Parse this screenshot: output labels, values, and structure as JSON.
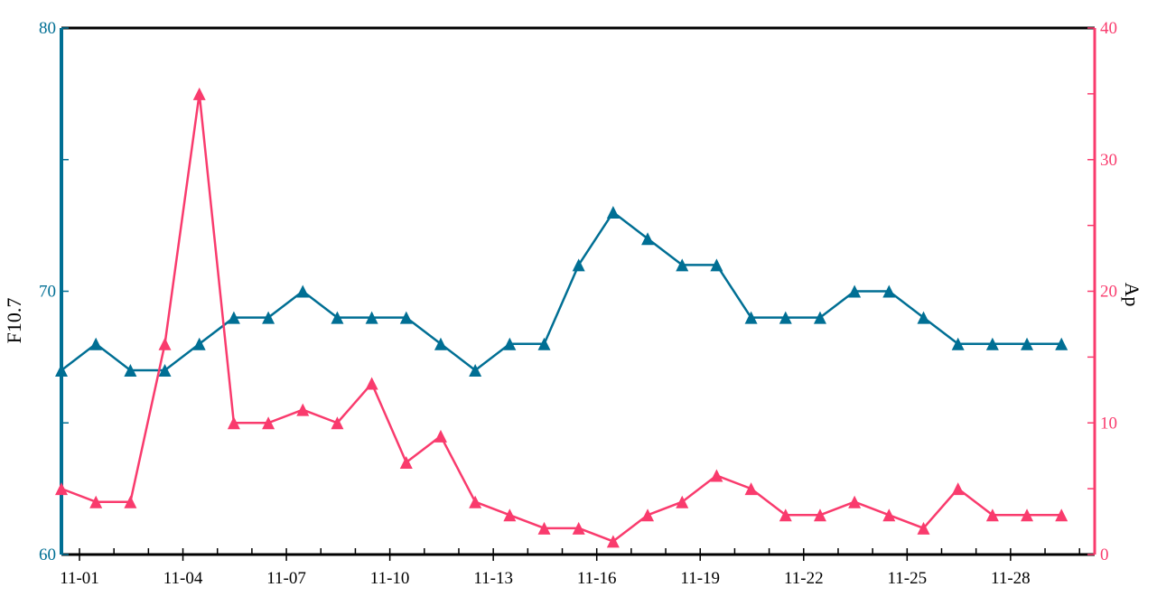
{
  "chart_data": {
    "type": "line",
    "title": "",
    "x": [
      "11-01",
      "11-02",
      "11-03",
      "11-04",
      "11-05",
      "11-06",
      "11-07",
      "11-08",
      "11-09",
      "11-10",
      "11-11",
      "11-12",
      "11-13",
      "11-14",
      "11-15",
      "11-16",
      "11-17",
      "11-18",
      "11-19",
      "11-20",
      "11-21",
      "11-22",
      "11-23",
      "11-24",
      "11-25",
      "11-26",
      "11-27",
      "11-28",
      "11-29",
      "11-30"
    ],
    "xticks": [
      "11-01",
      "11-04",
      "11-07",
      "11-10",
      "11-13",
      "11-16",
      "11-19",
      "11-22",
      "11-25",
      "11-28"
    ],
    "series": [
      {
        "name": "F10.7",
        "axis": "left",
        "color": "#006f94",
        "marker": "triangle",
        "values": [
          67,
          68,
          67,
          67,
          68,
          69,
          69,
          70,
          69,
          69,
          69,
          68,
          67,
          68,
          68,
          71,
          73,
          72,
          71,
          71,
          69,
          69,
          69,
          70,
          70,
          69,
          68,
          68,
          68,
          68
        ]
      },
      {
        "name": "Ap",
        "axis": "right",
        "color": "#f93b6d",
        "marker": "triangle",
        "values": [
          5,
          4,
          4,
          16,
          35,
          10,
          10,
          11,
          10,
          13,
          7,
          9,
          4,
          3,
          2,
          2,
          1,
          3,
          4,
          6,
          5,
          3,
          3,
          4,
          3,
          2,
          5,
          3,
          3,
          3
        ]
      }
    ],
    "yleft": {
      "label": "F10.7",
      "ylim": [
        60,
        80
      ],
      "ticks": [
        "60",
        "70",
        "80"
      ],
      "color": "#006f94"
    },
    "yright": {
      "label": "Ap",
      "ylim": [
        0,
        40
      ],
      "ticks": [
        "0",
        "10",
        "20",
        "30",
        "40"
      ],
      "color": "#f93b6d"
    },
    "grid": false,
    "legend": "none"
  }
}
